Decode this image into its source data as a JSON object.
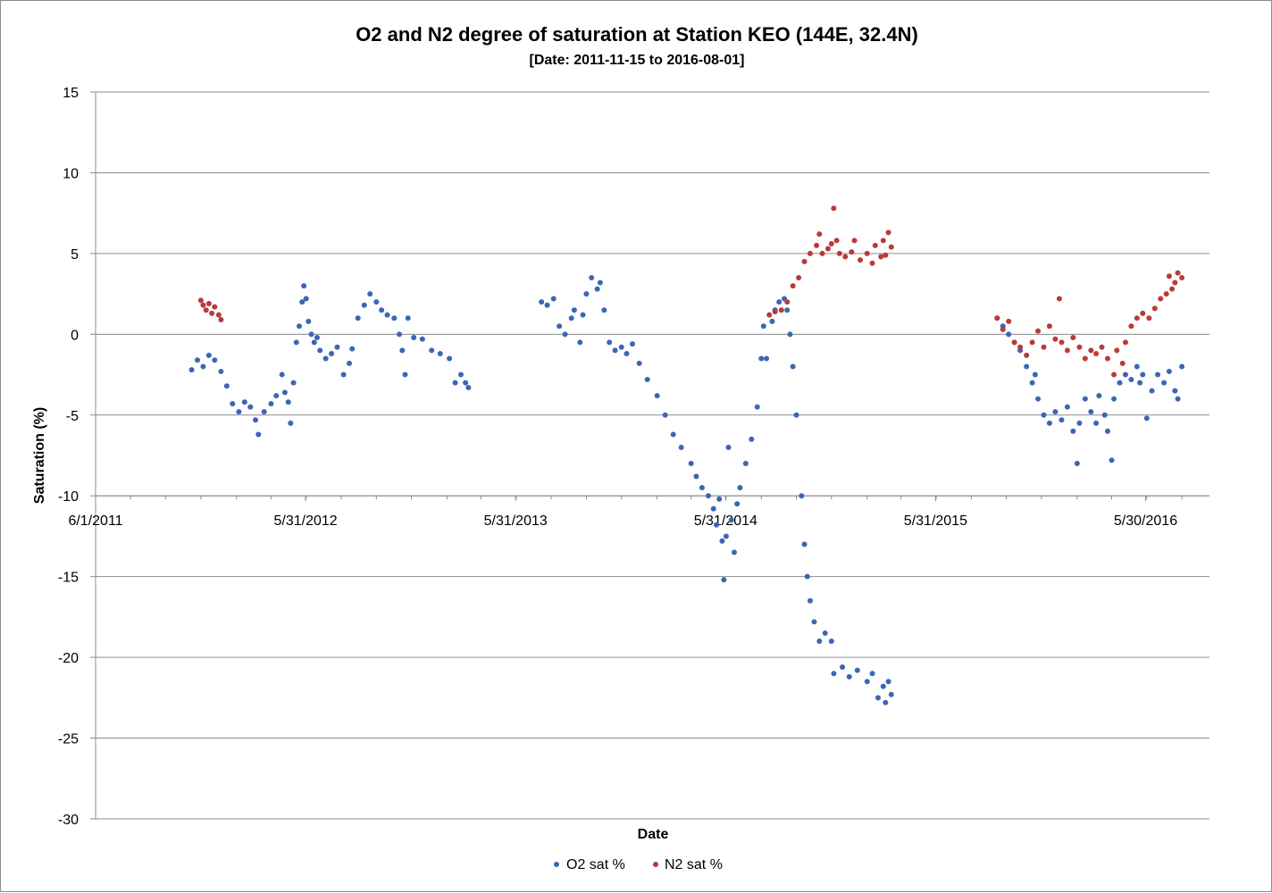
{
  "chart_data": {
    "type": "scatter",
    "title": "O2 and N2 degree of saturation at Station KEO  (144E, 32.4N)",
    "subtitle": "[Date: 2011-11-15 to 2016-08-01]",
    "xlabel": "Date",
    "ylabel": "Saturation (%)",
    "xlim": [
      "2011-06-01",
      "2016-09-18"
    ],
    "ylim": [
      -30,
      15
    ],
    "y_ticks": [
      15,
      10,
      5,
      0,
      -5,
      -10,
      -15,
      -20,
      -25,
      -30
    ],
    "x_ticks": [
      {
        "date": "2011-06-01",
        "label": "6/1/2011"
      },
      {
        "date": "2012-05-31",
        "label": "5/31/2012"
      },
      {
        "date": "2013-05-31",
        "label": "5/31/2013"
      },
      {
        "date": "2014-05-31",
        "label": "5/31/2014"
      },
      {
        "date": "2015-05-31",
        "label": "5/31/2015"
      },
      {
        "date": "2016-05-30",
        "label": "5/30/2016"
      }
    ],
    "x_axis_crosses_y": -10,
    "grid": "horizontal",
    "legend_position": "bottom",
    "series": [
      {
        "name": "O2 sat %",
        "color": "#3b66b5",
        "points": [
          [
            "2011-11-15",
            -2.2
          ],
          [
            "2011-11-25",
            -1.6
          ],
          [
            "2011-12-05",
            -2.0
          ],
          [
            "2011-12-15",
            -1.3
          ],
          [
            "2011-12-25",
            -1.6
          ],
          [
            "2012-01-05",
            -2.3
          ],
          [
            "2012-01-15",
            -3.2
          ],
          [
            "2012-01-25",
            -4.3
          ],
          [
            "2012-02-05",
            -4.8
          ],
          [
            "2012-02-15",
            -4.2
          ],
          [
            "2012-02-25",
            -4.5
          ],
          [
            "2012-03-05",
            -5.3
          ],
          [
            "2012-03-10",
            -6.2
          ],
          [
            "2012-03-20",
            -4.8
          ],
          [
            "2012-04-01",
            -4.3
          ],
          [
            "2012-04-10",
            -3.8
          ],
          [
            "2012-04-20",
            -2.5
          ],
          [
            "2012-04-25",
            -3.6
          ],
          [
            "2012-05-01",
            -4.2
          ],
          [
            "2012-05-05",
            -5.5
          ],
          [
            "2012-05-10",
            -3.0
          ],
          [
            "2012-05-15",
            -0.5
          ],
          [
            "2012-05-20",
            0.5
          ],
          [
            "2012-05-25",
            2.0
          ],
          [
            "2012-05-28",
            3.0
          ],
          [
            "2012-06-01",
            2.2
          ],
          [
            "2012-06-05",
            0.8
          ],
          [
            "2012-06-10",
            0.0
          ],
          [
            "2012-06-15",
            -0.5
          ],
          [
            "2012-06-20",
            -0.2
          ],
          [
            "2012-06-25",
            -1.0
          ],
          [
            "2012-07-05",
            -1.5
          ],
          [
            "2012-07-15",
            -1.2
          ],
          [
            "2012-07-25",
            -0.8
          ],
          [
            "2012-08-05",
            -2.5
          ],
          [
            "2012-08-15",
            -1.8
          ],
          [
            "2012-08-20",
            -0.9
          ],
          [
            "2012-08-30",
            1.0
          ],
          [
            "2012-09-10",
            1.8
          ],
          [
            "2012-09-20",
            2.5
          ],
          [
            "2012-10-01",
            2.0
          ],
          [
            "2012-10-10",
            1.5
          ],
          [
            "2012-10-20",
            1.2
          ],
          [
            "2012-11-01",
            1.0
          ],
          [
            "2012-11-10",
            0.0
          ],
          [
            "2012-11-15",
            -1.0
          ],
          [
            "2012-11-20",
            -2.5
          ],
          [
            "2012-11-25",
            1.0
          ],
          [
            "2012-12-05",
            -0.2
          ],
          [
            "2012-12-20",
            -0.3
          ],
          [
            "2013-01-05",
            -1.0
          ],
          [
            "2013-01-20",
            -1.2
          ],
          [
            "2013-02-05",
            -1.5
          ],
          [
            "2013-02-15",
            -3.0
          ],
          [
            "2013-02-25",
            -2.5
          ],
          [
            "2013-03-05",
            -3.0
          ],
          [
            "2013-03-10",
            -3.3
          ],
          [
            "2013-07-15",
            2.0
          ],
          [
            "2013-07-25",
            1.8
          ],
          [
            "2013-08-05",
            2.2
          ],
          [
            "2013-08-15",
            0.5
          ],
          [
            "2013-08-25",
            0.0
          ],
          [
            "2013-09-05",
            1.0
          ],
          [
            "2013-09-10",
            1.5
          ],
          [
            "2013-09-20",
            -0.5
          ],
          [
            "2013-09-25",
            1.2
          ],
          [
            "2013-10-01",
            2.5
          ],
          [
            "2013-10-10",
            3.5
          ],
          [
            "2013-10-20",
            2.8
          ],
          [
            "2013-10-25",
            3.2
          ],
          [
            "2013-11-01",
            1.5
          ],
          [
            "2013-11-10",
            -0.5
          ],
          [
            "2013-11-20",
            -1.0
          ],
          [
            "2013-12-01",
            -0.8
          ],
          [
            "2013-12-10",
            -1.2
          ],
          [
            "2013-12-20",
            -0.6
          ],
          [
            "2014-01-01",
            -1.8
          ],
          [
            "2014-01-15",
            -2.8
          ],
          [
            "2014-02-01",
            -3.8
          ],
          [
            "2014-02-15",
            -5.0
          ],
          [
            "2014-03-01",
            -6.2
          ],
          [
            "2014-03-15",
            -7.0
          ],
          [
            "2014-04-01",
            -8.0
          ],
          [
            "2014-04-10",
            -8.8
          ],
          [
            "2014-04-20",
            -9.5
          ],
          [
            "2014-05-01",
            -10.0
          ],
          [
            "2014-05-10",
            -10.8
          ],
          [
            "2014-05-15",
            -11.8
          ],
          [
            "2014-05-20",
            -10.2
          ],
          [
            "2014-05-25",
            -12.8
          ],
          [
            "2014-05-28",
            -15.2
          ],
          [
            "2014-06-01",
            -12.5
          ],
          [
            "2014-06-05",
            -7.0
          ],
          [
            "2014-06-10",
            -11.5
          ],
          [
            "2014-06-15",
            -13.5
          ],
          [
            "2014-06-20",
            -10.5
          ],
          [
            "2014-06-25",
            -9.5
          ],
          [
            "2014-07-05",
            -8.0
          ],
          [
            "2014-07-15",
            -6.5
          ],
          [
            "2014-07-25",
            -4.5
          ],
          [
            "2014-08-01",
            -1.5
          ],
          [
            "2014-08-05",
            0.5
          ],
          [
            "2014-08-10",
            -1.5
          ],
          [
            "2014-08-20",
            0.8
          ],
          [
            "2014-08-25",
            1.5
          ],
          [
            "2014-09-01",
            2.0
          ],
          [
            "2014-09-10",
            2.2
          ],
          [
            "2014-09-15",
            1.5
          ],
          [
            "2014-09-20",
            0.0
          ],
          [
            "2014-09-25",
            -2.0
          ],
          [
            "2014-10-01",
            -5.0
          ],
          [
            "2014-10-10",
            -10.0
          ],
          [
            "2014-10-15",
            -13.0
          ],
          [
            "2014-10-20",
            -15.0
          ],
          [
            "2014-10-25",
            -16.5
          ],
          [
            "2014-11-01",
            -17.8
          ],
          [
            "2014-11-10",
            -19.0
          ],
          [
            "2014-11-20",
            -18.5
          ],
          [
            "2014-12-01",
            -19.0
          ],
          [
            "2014-12-05",
            -21.0
          ],
          [
            "2014-12-20",
            -20.6
          ],
          [
            "2015-01-01",
            -21.2
          ],
          [
            "2015-01-15",
            -20.8
          ],
          [
            "2015-02-01",
            -21.5
          ],
          [
            "2015-02-10",
            -21.0
          ],
          [
            "2015-02-20",
            -22.5
          ],
          [
            "2015-03-01",
            -21.8
          ],
          [
            "2015-03-05",
            -22.8
          ],
          [
            "2015-03-10",
            -21.5
          ],
          [
            "2015-03-15",
            -22.3
          ],
          [
            "2015-09-15",
            1.0
          ],
          [
            "2015-09-25",
            0.5
          ],
          [
            "2015-10-05",
            0.0
          ],
          [
            "2015-10-15",
            -0.5
          ],
          [
            "2015-10-25",
            -1.0
          ],
          [
            "2015-11-05",
            -2.0
          ],
          [
            "2015-11-15",
            -3.0
          ],
          [
            "2015-11-20",
            -2.5
          ],
          [
            "2015-11-25",
            -4.0
          ],
          [
            "2015-12-05",
            -5.0
          ],
          [
            "2015-12-15",
            -5.5
          ],
          [
            "2015-12-25",
            -4.8
          ],
          [
            "2016-01-05",
            -5.3
          ],
          [
            "2016-01-15",
            -4.5
          ],
          [
            "2016-01-25",
            -6.0
          ],
          [
            "2016-02-01",
            -8.0
          ],
          [
            "2016-02-05",
            -5.5
          ],
          [
            "2016-02-15",
            -4.0
          ],
          [
            "2016-02-25",
            -4.8
          ],
          [
            "2016-03-05",
            -5.5
          ],
          [
            "2016-03-10",
            -3.8
          ],
          [
            "2016-03-20",
            -5.0
          ],
          [
            "2016-03-25",
            -6.0
          ],
          [
            "2016-04-01",
            -7.8
          ],
          [
            "2016-04-05",
            -4.0
          ],
          [
            "2016-04-15",
            -3.0
          ],
          [
            "2016-04-25",
            -2.5
          ],
          [
            "2016-05-05",
            -2.8
          ],
          [
            "2016-05-15",
            -2.0
          ],
          [
            "2016-05-20",
            -3.0
          ],
          [
            "2016-05-25",
            -2.5
          ],
          [
            "2016-06-01",
            -5.2
          ],
          [
            "2016-06-10",
            -3.5
          ],
          [
            "2016-06-20",
            -2.5
          ],
          [
            "2016-07-01",
            -3.0
          ],
          [
            "2016-07-10",
            -2.3
          ],
          [
            "2016-07-20",
            -3.5
          ],
          [
            "2016-07-25",
            -4.0
          ],
          [
            "2016-08-01",
            -2.0
          ]
        ]
      },
      {
        "name": "N2 sat %",
        "color": "#b83a3a",
        "points": [
          [
            "2011-12-01",
            2.1
          ],
          [
            "2011-12-05",
            1.8
          ],
          [
            "2011-12-10",
            1.5
          ],
          [
            "2011-12-15",
            1.9
          ],
          [
            "2011-12-20",
            1.3
          ],
          [
            "2011-12-25",
            1.7
          ],
          [
            "2012-01-01",
            1.2
          ],
          [
            "2012-01-05",
            0.9
          ],
          [
            "2014-08-15",
            1.2
          ],
          [
            "2014-08-25",
            1.4
          ],
          [
            "2014-09-05",
            1.5
          ],
          [
            "2014-09-15",
            2.0
          ],
          [
            "2014-09-25",
            3.0
          ],
          [
            "2014-10-05",
            3.5
          ],
          [
            "2014-10-15",
            4.5
          ],
          [
            "2014-10-25",
            5.0
          ],
          [
            "2014-11-05",
            5.5
          ],
          [
            "2014-11-10",
            6.2
          ],
          [
            "2014-11-15",
            5.0
          ],
          [
            "2014-11-25",
            5.3
          ],
          [
            "2014-12-01",
            5.6
          ],
          [
            "2014-12-05",
            7.8
          ],
          [
            "2014-12-10",
            5.8
          ],
          [
            "2014-12-15",
            5.0
          ],
          [
            "2014-12-25",
            4.8
          ],
          [
            "2015-01-05",
            5.1
          ],
          [
            "2015-01-10",
            5.8
          ],
          [
            "2015-01-20",
            4.6
          ],
          [
            "2015-02-01",
            5.0
          ],
          [
            "2015-02-10",
            4.4
          ],
          [
            "2015-02-15",
            5.5
          ],
          [
            "2015-02-25",
            4.8
          ],
          [
            "2015-03-01",
            5.8
          ],
          [
            "2015-03-05",
            4.9
          ],
          [
            "2015-03-10",
            6.3
          ],
          [
            "2015-03-15",
            5.4
          ],
          [
            "2015-09-15",
            1.0
          ],
          [
            "2015-09-25",
            0.3
          ],
          [
            "2015-10-05",
            0.8
          ],
          [
            "2015-10-15",
            -0.5
          ],
          [
            "2015-10-25",
            -0.8
          ],
          [
            "2015-11-05",
            -1.3
          ],
          [
            "2015-11-15",
            -0.5
          ],
          [
            "2015-11-25",
            0.2
          ],
          [
            "2015-12-05",
            -0.8
          ],
          [
            "2015-12-15",
            0.5
          ],
          [
            "2015-12-25",
            -0.3
          ],
          [
            "2016-01-01",
            2.2
          ],
          [
            "2016-01-05",
            -0.5
          ],
          [
            "2016-01-15",
            -1.0
          ],
          [
            "2016-01-25",
            -0.2
          ],
          [
            "2016-02-05",
            -0.8
          ],
          [
            "2016-02-15",
            -1.5
          ],
          [
            "2016-02-25",
            -1.0
          ],
          [
            "2016-03-05",
            -1.2
          ],
          [
            "2016-03-15",
            -0.8
          ],
          [
            "2016-03-25",
            -1.5
          ],
          [
            "2016-04-05",
            -2.5
          ],
          [
            "2016-04-10",
            -1.0
          ],
          [
            "2016-04-20",
            -1.8
          ],
          [
            "2016-04-25",
            -0.5
          ],
          [
            "2016-05-05",
            0.5
          ],
          [
            "2016-05-15",
            1.0
          ],
          [
            "2016-05-25",
            1.3
          ],
          [
            "2016-06-05",
            1.0
          ],
          [
            "2016-06-15",
            1.6
          ],
          [
            "2016-06-25",
            2.2
          ],
          [
            "2016-07-05",
            2.5
          ],
          [
            "2016-07-10",
            3.6
          ],
          [
            "2016-07-15",
            2.8
          ],
          [
            "2016-07-20",
            3.2
          ],
          [
            "2016-07-25",
            3.8
          ],
          [
            "2016-08-01",
            3.5
          ]
        ]
      }
    ]
  }
}
